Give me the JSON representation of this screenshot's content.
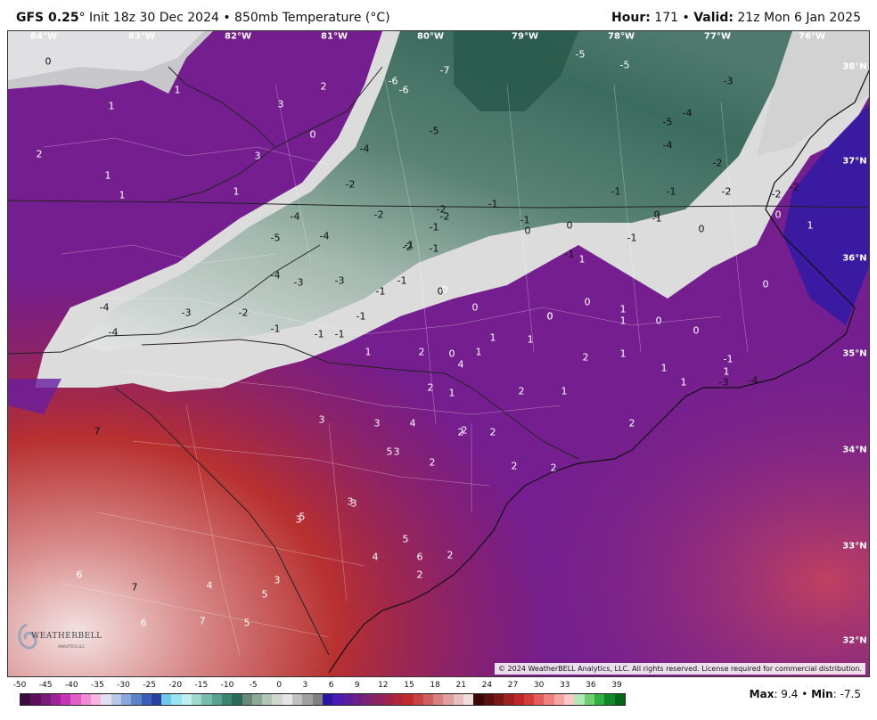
{
  "header": {
    "model": "GFS 0.25",
    "deg": "°",
    "init": " Init 18z 30 Dec 2024 • 850mb Temperature (°C)",
    "hour_label": "Hour:",
    "hour_value": " 171 • ",
    "valid_label": "Valid:",
    "valid_value": " 21z Mon 6 Jan 2025"
  },
  "map": {
    "lon_labels": [
      "84°W",
      "83°W",
      "82°W",
      "81°W",
      "80°W",
      "79°W",
      "78°W",
      "77°W",
      "76°W"
    ],
    "lat_labels": [
      "38°N",
      "37°N",
      "36°N",
      "35°N",
      "34°N",
      "33°N",
      "32°N"
    ],
    "copyright": "© 2024 WeatherBELL Analytics, LLC. All rights reserved. License required for commercial distribution.",
    "logo_text": "WEATHERBELL",
    "logo_sub": "ANALYTICS LLC",
    "contour_labels": [
      {
        "v": "0",
        "c": "d"
      },
      {
        "v": "1",
        "c": "w"
      },
      {
        "v": "1",
        "c": "w"
      },
      {
        "v": "2",
        "c": "w"
      },
      {
        "v": "3",
        "c": "w"
      },
      {
        "v": "2",
        "c": "w"
      },
      {
        "v": "3",
        "c": "w"
      },
      {
        "v": "1",
        "c": "w"
      },
      {
        "v": "1",
        "c": "w"
      },
      {
        "v": "0",
        "c": "w"
      },
      {
        "v": "1",
        "c": "w"
      },
      {
        "v": "-7",
        "c": "w"
      },
      {
        "v": "-6",
        "c": "w"
      },
      {
        "v": "-6",
        "c": "w"
      },
      {
        "v": "-5",
        "c": "w"
      },
      {
        "v": "-5",
        "c": "w"
      },
      {
        "v": "-5",
        "c": "d"
      },
      {
        "v": "-4",
        "c": "d"
      },
      {
        "v": "-3",
        "c": "d"
      },
      {
        "v": "-4",
        "c": "d"
      },
      {
        "v": "-5",
        "c": "d"
      },
      {
        "v": "-4",
        "c": "d"
      },
      {
        "v": "-2",
        "c": "d"
      },
      {
        "v": "-2",
        "c": "d"
      },
      {
        "v": "-1",
        "c": "d"
      },
      {
        "v": "-1",
        "c": "d"
      },
      {
        "v": "-2",
        "c": "d"
      },
      {
        "v": "-1",
        "c": "d"
      },
      {
        "v": "-4",
        "c": "d"
      },
      {
        "v": "-5",
        "c": "d"
      },
      {
        "v": "-4",
        "c": "d"
      },
      {
        "v": "-2",
        "c": "d"
      },
      {
        "v": "-2",
        "c": "d"
      },
      {
        "v": "-1",
        "c": "d"
      },
      {
        "v": "-1",
        "c": "d"
      },
      {
        "v": "0",
        "c": "d"
      },
      {
        "v": "0",
        "c": "d"
      },
      {
        "v": "0",
        "c": "d"
      },
      {
        "v": "0",
        "c": "d"
      },
      {
        "v": "-4",
        "c": "d"
      },
      {
        "v": "-3",
        "c": "d"
      },
      {
        "v": "-3",
        "c": "d"
      },
      {
        "v": "-1",
        "c": "d"
      },
      {
        "v": "-1",
        "c": "d"
      },
      {
        "v": "0",
        "c": "d"
      },
      {
        "v": "-4",
        "c": "d"
      },
      {
        "v": "-4",
        "c": "d"
      },
      {
        "v": "-3",
        "c": "d"
      },
      {
        "v": "-2",
        "c": "d"
      },
      {
        "v": "-1",
        "c": "d"
      },
      {
        "v": "-1",
        "c": "d"
      },
      {
        "v": "-1",
        "c": "d"
      },
      {
        "v": "-1",
        "c": "d"
      },
      {
        "v": "-2",
        "c": "d"
      },
      {
        "v": "-1",
        "c": "d"
      },
      {
        "v": "-2",
        "c": "d"
      },
      {
        "v": "-1",
        "c": "d"
      },
      {
        "v": "-1",
        "c": "d"
      },
      {
        "v": "-1",
        "c": "d"
      },
      {
        "v": "-1",
        "c": "d"
      },
      {
        "v": "1",
        "c": "w"
      },
      {
        "v": "2",
        "c": "w"
      },
      {
        "v": "4",
        "c": "w"
      },
      {
        "v": "2",
        "c": "w"
      },
      {
        "v": "0",
        "c": "w"
      },
      {
        "v": "1",
        "c": "w"
      },
      {
        "v": "1",
        "c": "w"
      },
      {
        "v": "1",
        "c": "w"
      },
      {
        "v": "2",
        "c": "w"
      },
      {
        "v": "1",
        "c": "w"
      },
      {
        "v": "2",
        "c": "w"
      },
      {
        "v": "0",
        "c": "w"
      },
      {
        "v": "1",
        "c": "w"
      },
      {
        "v": "0",
        "c": "w"
      },
      {
        "v": "1",
        "c": "w"
      },
      {
        "v": "0",
        "c": "w"
      },
      {
        "v": "1",
        "c": "w"
      },
      {
        "v": "2",
        "c": "w"
      },
      {
        "v": "3",
        "c": "w"
      },
      {
        "v": "3",
        "c": "w"
      },
      {
        "v": "3",
        "c": "w"
      },
      {
        "v": "2",
        "c": "w"
      },
      {
        "v": "2",
        "c": "w"
      },
      {
        "v": "2",
        "c": "w"
      },
      {
        "v": "2",
        "c": "w"
      },
      {
        "v": "2",
        "c": "w"
      },
      {
        "v": "3",
        "c": "w"
      },
      {
        "v": "5",
        "c": "w"
      },
      {
        "v": "4",
        "c": "w"
      },
      {
        "v": "5",
        "c": "w"
      },
      {
        "v": "7",
        "c": "d"
      },
      {
        "v": "6",
        "c": "w"
      },
      {
        "v": "7",
        "c": "d"
      },
      {
        "v": "6",
        "c": "w"
      },
      {
        "v": "7",
        "c": "w"
      },
      {
        "v": "5",
        "c": "w"
      },
      {
        "v": "4",
        "c": "w"
      },
      {
        "v": "5",
        "c": "w"
      },
      {
        "v": "3",
        "c": "w"
      },
      {
        "v": "3",
        "c": "w"
      },
      {
        "v": "3",
        "c": "w"
      },
      {
        "v": "4",
        "c": "w"
      },
      {
        "v": "5",
        "c": "w"
      },
      {
        "v": "6",
        "c": "w"
      },
      {
        "v": "2",
        "c": "w"
      },
      {
        "v": "2",
        "c": "w"
      },
      {
        "v": "2",
        "c": "w"
      },
      {
        "v": "1",
        "c": "w"
      },
      {
        "v": "0",
        "c": "w"
      },
      {
        "v": "0",
        "c": "w"
      },
      {
        "v": "0",
        "c": "w"
      },
      {
        "v": "1",
        "c": "w"
      },
      {
        "v": "1",
        "c": "w"
      },
      {
        "v": "1",
        "c": "w"
      },
      {
        "v": "1",
        "c": "w"
      },
      {
        "v": "-3",
        "c": "d"
      },
      {
        "v": "-4",
        "c": "d"
      },
      {
        "v": "-1",
        "c": "w"
      },
      {
        "v": "-2",
        "c": "d"
      },
      {
        "v": "-2",
        "c": "d"
      },
      {
        "v": "0",
        "c": "w"
      },
      {
        "v": "0",
        "c": "w"
      },
      {
        "v": "0",
        "c": "w"
      },
      {
        "v": "1",
        "c": "w"
      }
    ]
  },
  "legend": {
    "ticks": [
      "-50",
      "-45",
      "-40",
      "-35",
      "-30",
      "-25",
      "-20",
      "-15",
      "-10",
      "-5",
      "0",
      "3",
      "6",
      "9",
      "12",
      "15",
      "18",
      "21",
      "24",
      "27",
      "30",
      "33",
      "36",
      "39"
    ],
    "colors": [
      "#3b0c3b",
      "#5c0f5c",
      "#7a1a7a",
      "#a0239a",
      "#c636b4",
      "#e05fc4",
      "#f08ad2",
      "#f7b4e0",
      "#e0e0f0",
      "#b8c8e8",
      "#8aa6dc",
      "#5c82c8",
      "#3a5eb4",
      "#2a3fa0",
      "#6ec8e8",
      "#9ae6f0",
      "#c0f0f0",
      "#a0d8d0",
      "#78bcb0",
      "#58a090",
      "#3c8470",
      "#2a6a58",
      "#6a8878",
      "#8ca898",
      "#b0c4b8",
      "#d0d8d0",
      "#e6e6e6",
      "#c0c0c0",
      "#a0a0a0",
      "#808080",
      "#2a18a0",
      "#4a1ab4",
      "#5a1e9c",
      "#6a2088",
      "#7a2274",
      "#8c2460",
      "#9e264c",
      "#b02838",
      "#c02c2c",
      "#c84444",
      "#d06060",
      "#d88080",
      "#e0a0a0",
      "#e8c0c0",
      "#f0dede",
      "#3a0808",
      "#5c1010",
      "#7a1818",
      "#9c2020",
      "#be2828",
      "#d43c3c",
      "#e45c5c",
      "#f08080",
      "#f6a4a4",
      "#fcc8c8",
      "#b0e8b8",
      "#70d070",
      "#30b040",
      "#108828",
      "#006818"
    ],
    "max_label": "Max",
    "max_value": ": 9.4 • ",
    "min_label": "Min",
    "min_value": ": -7.5"
  }
}
